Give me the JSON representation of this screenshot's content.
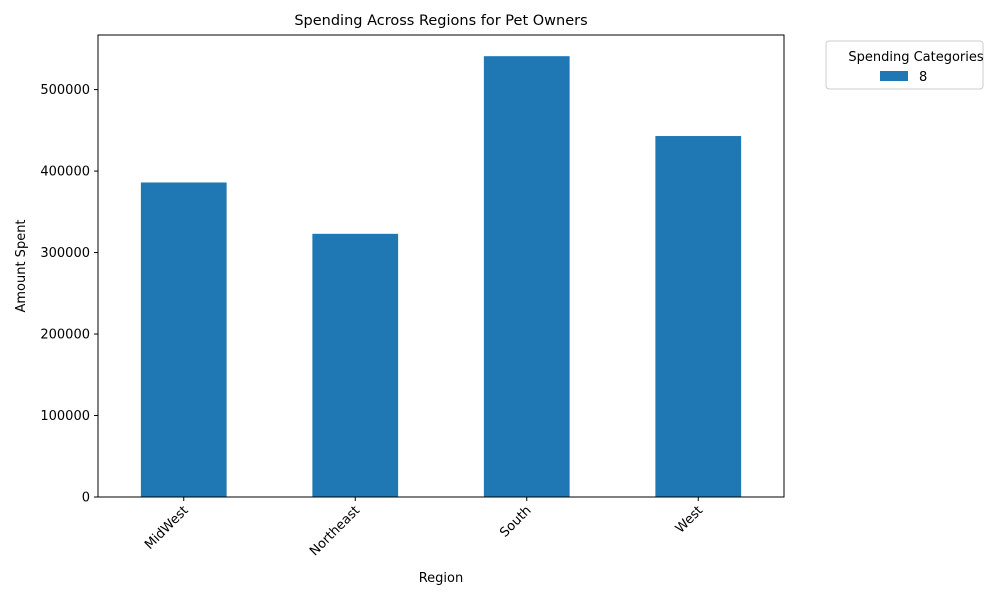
{
  "chart_data": {
    "type": "bar",
    "title": "Spending Across Regions for Pet Owners",
    "xlabel": "Region",
    "ylabel": "Amount Spent",
    "categories": [
      "MidWest",
      "Northeast",
      "South",
      "West"
    ],
    "series": [
      {
        "name": "8",
        "color": "#1f77b4",
        "values": [
          386000,
          323000,
          541000,
          443000
        ]
      }
    ],
    "ylim": [
      0,
      567000
    ],
    "yticks": [
      0,
      100000,
      200000,
      300000,
      400000,
      500000
    ],
    "ytick_labels": [
      "0",
      "100000",
      "200000",
      "300000",
      "400000",
      "500000"
    ],
    "legend": {
      "title": "Spending Categories",
      "placement": "outside-top-right"
    },
    "grid": false,
    "xtick_rotation_deg": 45
  }
}
